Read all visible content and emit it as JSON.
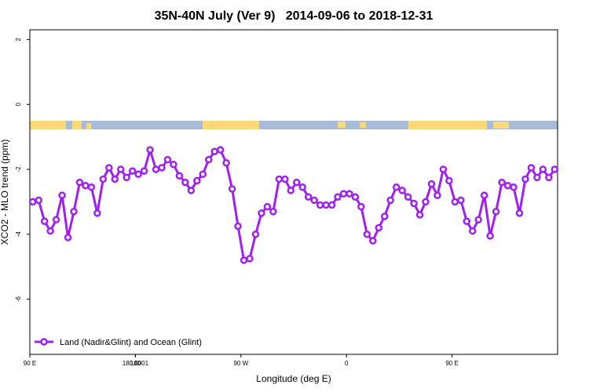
{
  "chart_data": {
    "type": "line",
    "title": "35N-40N July (Ver 9)   2014-09-06 to 2018-12-31",
    "x_label": "Longitude (deg E)",
    "y_label": "XCO2 - MLO trend (ppm)",
    "xlim": [
      90,
      540
    ],
    "ylim": [
      -7.7,
      2.3
    ],
    "xticks": [
      {
        "value": 90,
        "label": "90 E"
      },
      180,
      {
        "value": 270,
        "label": "90 W"
      },
      {
        "value": 360,
        "label": "0"
      },
      {
        "value": 450,
        "label": "90 E"
      },
      180.0001
    ],
    "yticks": [
      2,
      0,
      -2,
      -4,
      -6
    ],
    "legend": "bottom-left",
    "series": [
      {
        "name": "Land (Nadir&Glint) and Ocean (Glint)",
        "color": "#a020f0",
        "x": [
          92.5,
          97.5,
          102.5,
          107.5,
          112.5,
          117.5,
          122.5,
          127.5,
          132.5,
          137.5,
          142.5,
          147.5,
          152.5,
          157.5,
          162.5,
          167.5,
          172.5,
          177.5,
          182.5,
          187.5,
          192.5,
          197.5,
          202.5,
          207.5,
          212.5,
          217.5,
          222.5,
          227.5,
          232.5,
          237.5,
          242.5,
          247.5,
          252.5,
          257.5,
          262.5,
          267.5,
          272.5,
          277.5,
          282.5,
          287.5,
          292.5,
          297.5,
          302.5,
          307.5,
          312.5,
          317.5,
          322.5,
          327.5,
          332.5,
          337.5,
          342.5,
          347.5,
          352.5,
          357.5,
          362.5,
          367.5,
          372.5,
          377.5,
          382.5,
          387.5,
          392.5,
          397.5,
          402.5,
          407.5,
          412.5,
          417.5,
          422.5,
          427.5,
          432.5,
          437.5,
          442.5,
          447.5,
          452.5,
          457.5,
          462.5,
          467.5,
          472.5,
          477.5,
          482.5,
          487.5,
          492.5,
          497.5,
          502.5,
          507.5,
          512.5,
          517.5,
          522.5,
          527.5,
          532.5,
          537.5
        ],
        "values": [
          -3.0,
          -2.95,
          -3.6,
          -3.9,
          -3.55,
          -2.8,
          -4.1,
          -3.3,
          -2.4,
          -2.5,
          -2.55,
          -3.35,
          -2.3,
          -1.95,
          -2.3,
          -2.0,
          -2.25,
          -2.05,
          -2.15,
          -2.05,
          -1.4,
          -2.0,
          -1.95,
          -1.7,
          -1.85,
          -2.2,
          -2.4,
          -2.65,
          -2.35,
          -2.15,
          -1.7,
          -1.45,
          -1.4,
          -1.8,
          -2.6,
          -3.75,
          -4.8,
          -4.75,
          -4.0,
          -3.35,
          -3.15,
          -3.3,
          -2.3,
          -2.3,
          -2.65,
          -2.4,
          -2.55,
          -2.85,
          -2.95,
          -3.1,
          -3.1,
          -3.1,
          -2.85,
          -2.75,
          -2.75,
          -2.85,
          -3.15,
          -4.0,
          -4.2,
          -3.8,
          -3.45,
          -2.95,
          -2.55,
          -2.65,
          -2.85,
          -3.05,
          -3.4,
          -3.0,
          -2.45,
          -2.8,
          -2.0,
          -2.35,
          -3.0,
          -2.95,
          -3.6,
          -3.9,
          -3.55,
          -2.8,
          -4.05,
          -3.3,
          -2.4,
          -2.5,
          -2.55,
          -3.35,
          -2.3,
          -1.95,
          -2.25,
          -2.0,
          -2.25,
          -2.0
        ]
      }
    ]
  }
}
